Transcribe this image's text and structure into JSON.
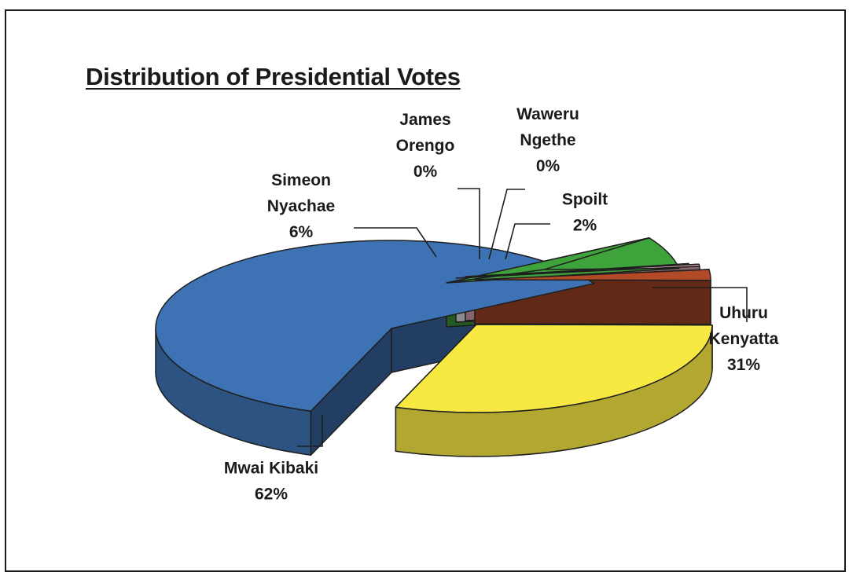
{
  "chart_data": {
    "type": "pie",
    "title": "Distribution of Presidential Votes",
    "three_d": true,
    "exploded": true,
    "slices": [
      {
        "name": "Mwai Kibaki",
        "label_lines": [
          "Mwai Kibaki"
        ],
        "percent_label": "62%",
        "value": 62,
        "color": "#3d73b4"
      },
      {
        "name": "Simeon Nyachae",
        "label_lines": [
          "Simeon",
          "Nyachae"
        ],
        "percent_label": "6%",
        "value": 6,
        "color": "#3fa33c"
      },
      {
        "name": "James Orengo",
        "label_lines": [
          "James",
          "Orengo"
        ],
        "percent_label": "0%",
        "value": 0.4,
        "color": "#ffffff"
      },
      {
        "name": "Waweru Ngethe",
        "label_lines": [
          "Waweru",
          "Ngethe"
        ],
        "percent_label": "0%",
        "value": 0.4,
        "color": "#f6b6c2"
      },
      {
        "name": "Spoilt",
        "label_lines": [
          "Spoilt"
        ],
        "percent_label": "2%",
        "value": 2,
        "color": "#b24a28"
      },
      {
        "name": "Uhuru Kenyatta",
        "label_lines": [
          "Uhuru",
          "Kenyatta"
        ],
        "percent_label": "31%",
        "value": 31,
        "color": "#f7e842"
      }
    ]
  }
}
